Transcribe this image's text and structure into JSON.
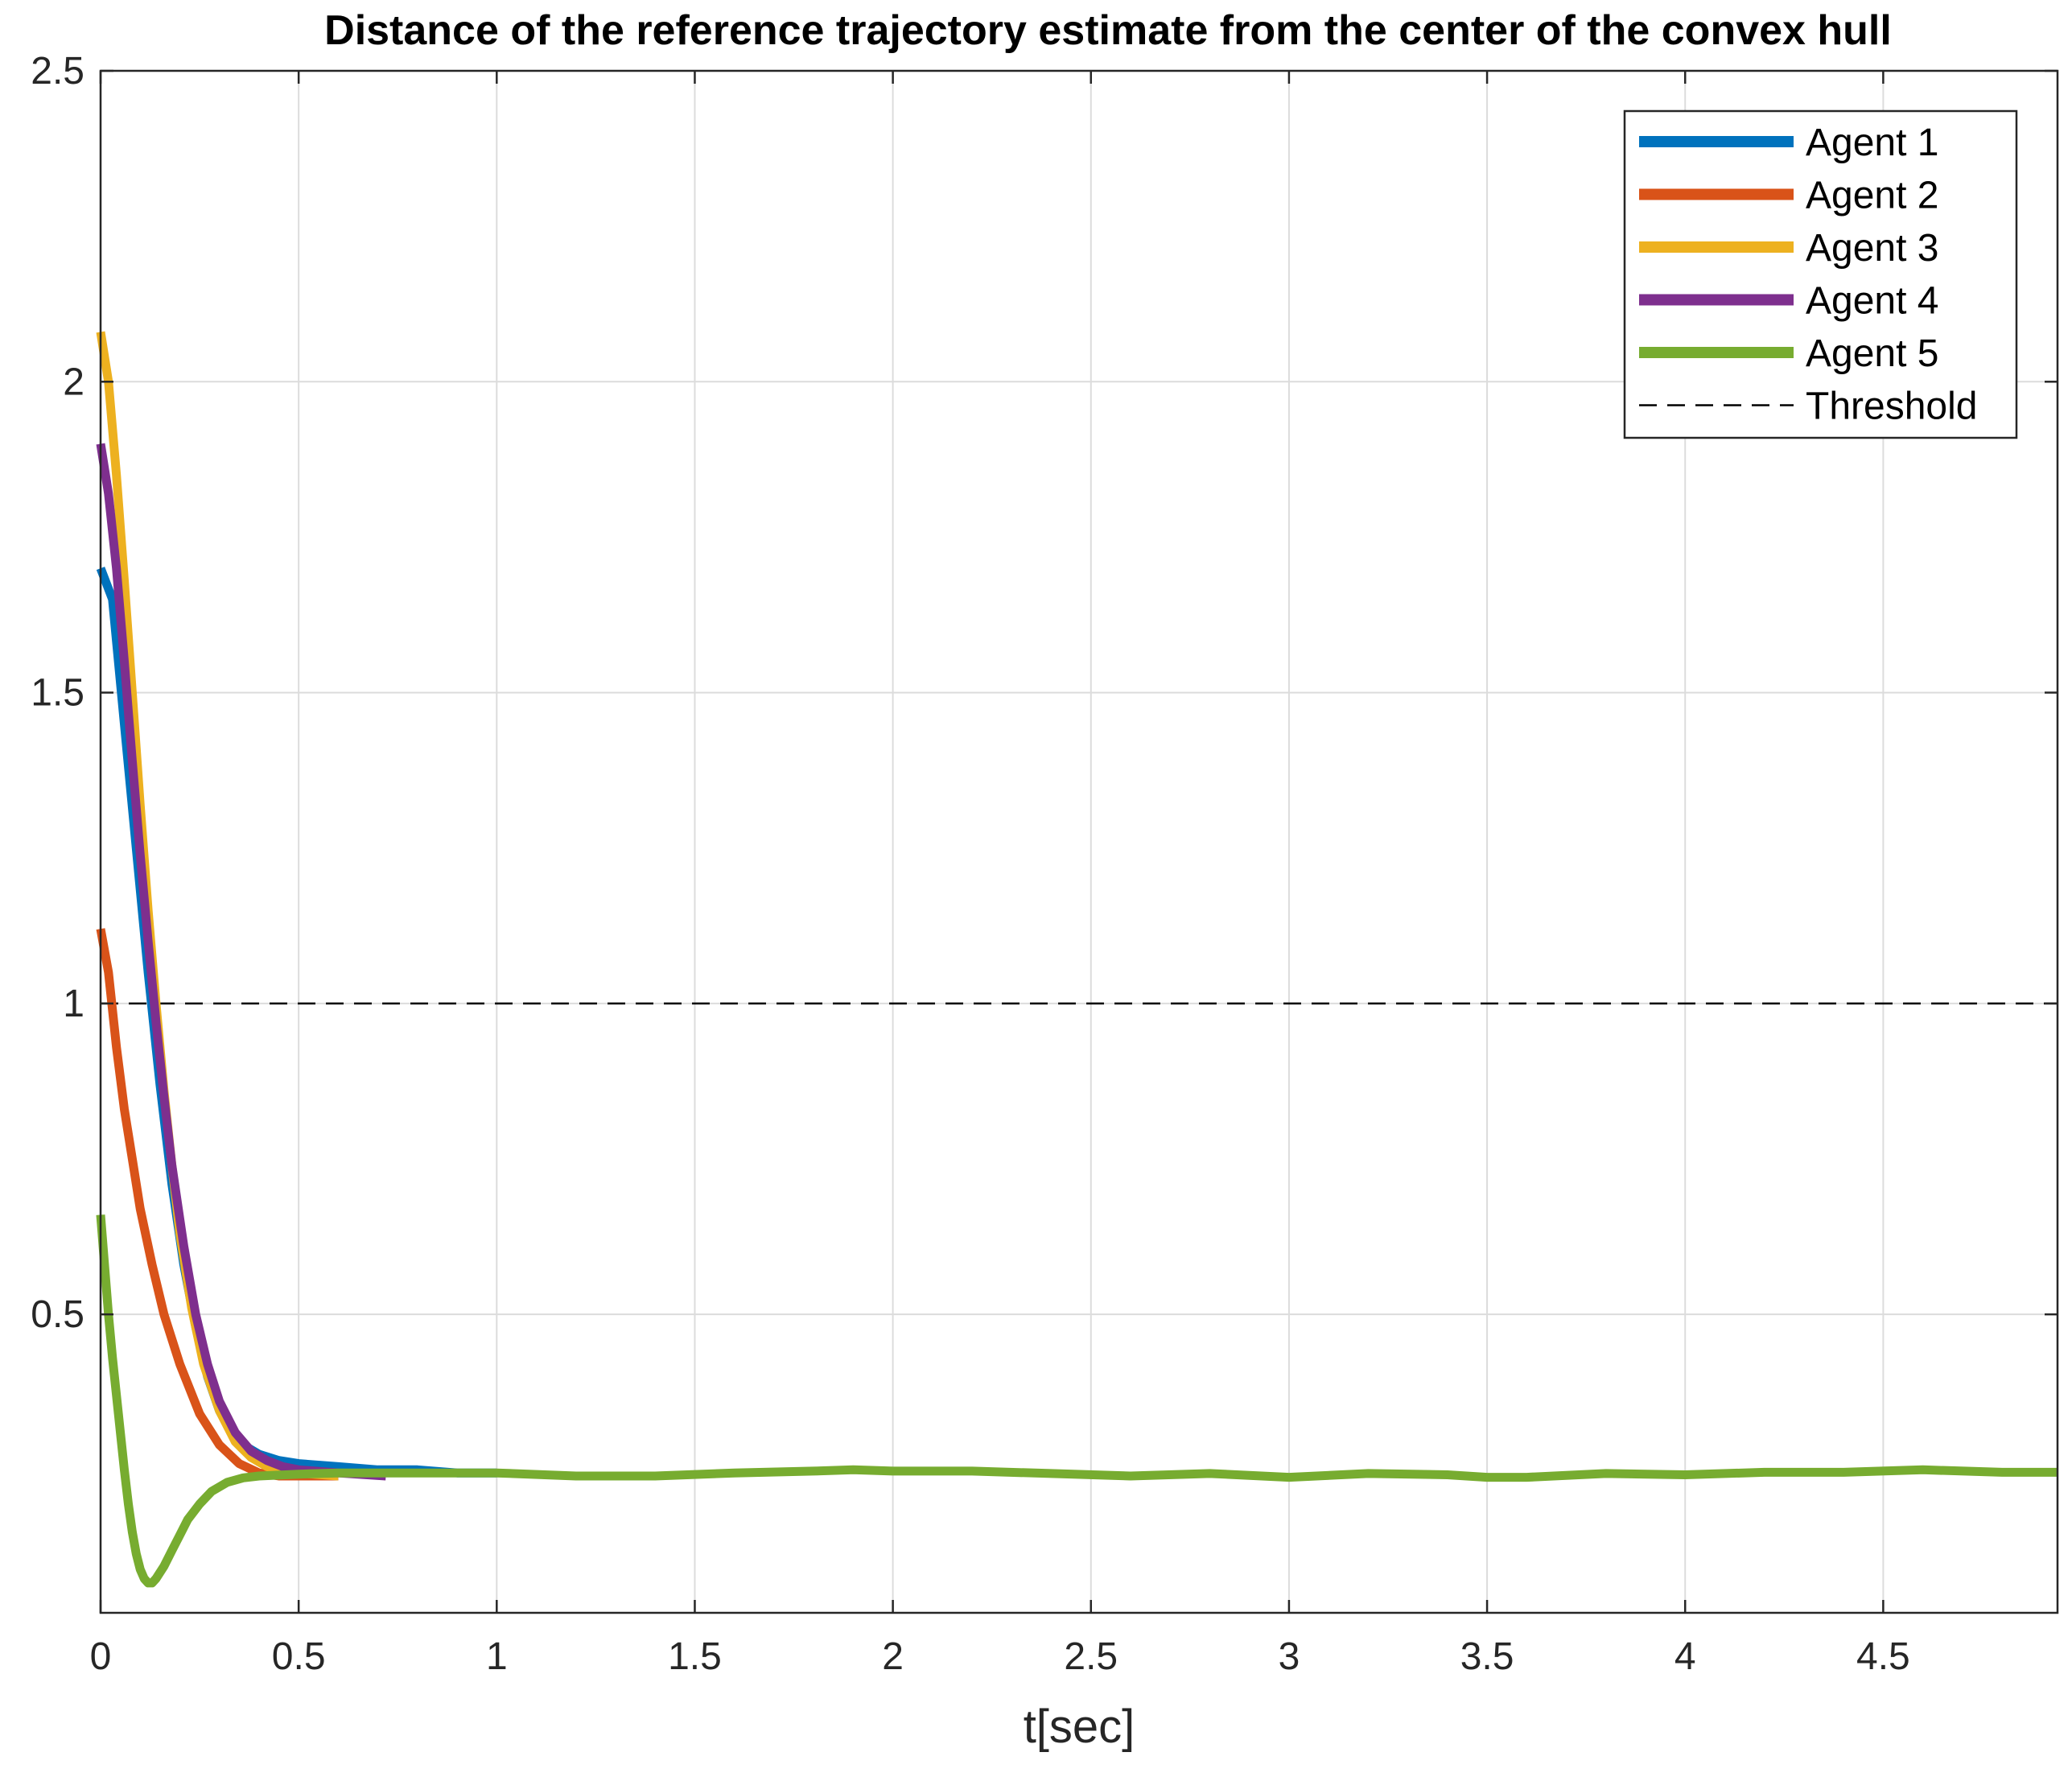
{
  "chart_data": {
    "type": "line",
    "title": "Distance of the reference trajectory estimate from the center of the convex hull",
    "xlabel": "t[sec]",
    "ylabel": "",
    "xlim": [
      0,
      4.94
    ],
    "ylim": [
      0.02,
      2.5
    ],
    "xticks": [
      "0",
      "0.5",
      "1",
      "1.5",
      "2",
      "2.5",
      "3",
      "3.5",
      "4",
      "4.5"
    ],
    "yticks": [
      "0.5",
      "1",
      "1.5",
      "2",
      "2.5"
    ],
    "grid": true,
    "legend_position": "top-right",
    "series": [
      {
        "name": "Agent 1",
        "color": "#0072BD",
        "points": [
          [
            0,
            1.7
          ],
          [
            0.03,
            1.65
          ],
          [
            0.06,
            1.45
          ],
          [
            0.09,
            1.25
          ],
          [
            0.12,
            1.05
          ],
          [
            0.15,
            0.87
          ],
          [
            0.18,
            0.71
          ],
          [
            0.21,
            0.58
          ],
          [
            0.24,
            0.48
          ],
          [
            0.27,
            0.4
          ],
          [
            0.3,
            0.345
          ],
          [
            0.33,
            0.31
          ],
          [
            0.36,
            0.29
          ],
          [
            0.4,
            0.275
          ],
          [
            0.45,
            0.265
          ],
          [
            0.5,
            0.26
          ],
          [
            0.6,
            0.255
          ],
          [
            0.7,
            0.25
          ],
          [
            0.8,
            0.25
          ],
          [
            0.9,
            0.245
          ],
          [
            1.0,
            0.245
          ]
        ]
      },
      {
        "name": "Agent 2",
        "color": "#D95319",
        "points": [
          [
            0,
            1.12
          ],
          [
            0.02,
            1.05
          ],
          [
            0.04,
            0.93
          ],
          [
            0.06,
            0.83
          ],
          [
            0.08,
            0.75
          ],
          [
            0.1,
            0.67
          ],
          [
            0.13,
            0.58
          ],
          [
            0.16,
            0.5
          ],
          [
            0.2,
            0.42
          ],
          [
            0.25,
            0.34
          ],
          [
            0.3,
            0.29
          ],
          [
            0.35,
            0.26
          ],
          [
            0.4,
            0.245
          ],
          [
            0.45,
            0.24
          ],
          [
            0.5,
            0.24
          ],
          [
            0.6,
            0.24
          ]
        ]
      },
      {
        "name": "Agent 3",
        "color": "#EDB120",
        "points": [
          [
            0,
            2.08
          ],
          [
            0.02,
            2.0
          ],
          [
            0.04,
            1.85
          ],
          [
            0.06,
            1.68
          ],
          [
            0.08,
            1.5
          ],
          [
            0.1,
            1.32
          ],
          [
            0.12,
            1.15
          ],
          [
            0.14,
            1.0
          ],
          [
            0.16,
            0.86
          ],
          [
            0.18,
            0.74
          ],
          [
            0.2,
            0.63
          ],
          [
            0.23,
            0.51
          ],
          [
            0.26,
            0.42
          ],
          [
            0.3,
            0.345
          ],
          [
            0.34,
            0.295
          ],
          [
            0.38,
            0.27
          ],
          [
            0.42,
            0.255
          ],
          [
            0.46,
            0.25
          ],
          [
            0.5,
            0.245
          ],
          [
            0.6,
            0.24
          ]
        ]
      },
      {
        "name": "Agent 4",
        "color": "#7E2F8E",
        "points": [
          [
            0,
            1.9
          ],
          [
            0.02,
            1.82
          ],
          [
            0.04,
            1.7
          ],
          [
            0.06,
            1.55
          ],
          [
            0.08,
            1.39
          ],
          [
            0.1,
            1.24
          ],
          [
            0.12,
            1.1
          ],
          [
            0.14,
            0.97
          ],
          [
            0.16,
            0.85
          ],
          [
            0.18,
            0.74
          ],
          [
            0.21,
            0.61
          ],
          [
            0.24,
            0.5
          ],
          [
            0.27,
            0.42
          ],
          [
            0.3,
            0.36
          ],
          [
            0.34,
            0.31
          ],
          [
            0.38,
            0.28
          ],
          [
            0.42,
            0.265
          ],
          [
            0.46,
            0.255
          ],
          [
            0.5,
            0.25
          ],
          [
            0.6,
            0.245
          ],
          [
            0.72,
            0.24
          ]
        ]
      },
      {
        "name": "Agent 5",
        "color": "#77AC30",
        "points": [
          [
            0,
            0.66
          ],
          [
            0.01,
            0.58
          ],
          [
            0.02,
            0.5
          ],
          [
            0.03,
            0.43
          ],
          [
            0.04,
            0.37
          ],
          [
            0.05,
            0.31
          ],
          [
            0.06,
            0.25
          ],
          [
            0.07,
            0.195
          ],
          [
            0.08,
            0.15
          ],
          [
            0.09,
            0.115
          ],
          [
            0.1,
            0.09
          ],
          [
            0.11,
            0.075
          ],
          [
            0.12,
            0.068
          ],
          [
            0.13,
            0.068
          ],
          [
            0.14,
            0.075
          ],
          [
            0.16,
            0.095
          ],
          [
            0.18,
            0.12
          ],
          [
            0.2,
            0.145
          ],
          [
            0.22,
            0.17
          ],
          [
            0.25,
            0.195
          ],
          [
            0.28,
            0.215
          ],
          [
            0.32,
            0.23
          ],
          [
            0.36,
            0.237
          ],
          [
            0.4,
            0.24
          ],
          [
            0.5,
            0.243
          ],
          [
            0.6,
            0.245
          ],
          [
            0.8,
            0.245
          ],
          [
            1.0,
            0.245
          ],
          [
            1.2,
            0.24
          ],
          [
            1.4,
            0.24
          ],
          [
            1.6,
            0.245
          ],
          [
            1.8,
            0.248
          ],
          [
            1.9,
            0.25
          ],
          [
            2.0,
            0.248
          ],
          [
            2.2,
            0.248
          ],
          [
            2.4,
            0.244
          ],
          [
            2.6,
            0.24
          ],
          [
            2.8,
            0.244
          ],
          [
            3.0,
            0.238
          ],
          [
            3.2,
            0.244
          ],
          [
            3.4,
            0.242
          ],
          [
            3.5,
            0.238
          ],
          [
            3.6,
            0.238
          ],
          [
            3.8,
            0.244
          ],
          [
            4.0,
            0.242
          ],
          [
            4.2,
            0.246
          ],
          [
            4.4,
            0.246
          ],
          [
            4.6,
            0.25
          ],
          [
            4.8,
            0.246
          ],
          [
            4.94,
            0.246
          ]
        ]
      },
      {
        "name": "Threshold",
        "color": "#000000",
        "dashed": true,
        "points": [
          [
            0,
            1.0
          ],
          [
            4.94,
            1.0
          ]
        ]
      }
    ]
  }
}
